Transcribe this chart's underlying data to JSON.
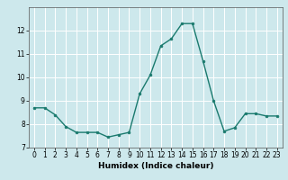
{
  "x": [
    0,
    1,
    2,
    3,
    4,
    5,
    6,
    7,
    8,
    9,
    10,
    11,
    12,
    13,
    14,
    15,
    16,
    17,
    18,
    19,
    20,
    21,
    22,
    23
  ],
  "y": [
    8.7,
    8.7,
    8.4,
    7.9,
    7.65,
    7.65,
    7.65,
    7.45,
    7.55,
    7.65,
    9.3,
    10.1,
    11.35,
    11.65,
    12.3,
    12.3,
    10.7,
    9.0,
    7.7,
    7.85,
    8.45,
    8.45,
    8.35,
    8.35
  ],
  "xlim": [
    -0.5,
    23.5
  ],
  "ylim": [
    7,
    13
  ],
  "yticks": [
    7,
    8,
    9,
    10,
    11,
    12
  ],
  "xticks": [
    0,
    1,
    2,
    3,
    4,
    5,
    6,
    7,
    8,
    9,
    10,
    11,
    12,
    13,
    14,
    15,
    16,
    17,
    18,
    19,
    20,
    21,
    22,
    23
  ],
  "xlabel": "Humidex (Indice chaleur)",
  "line_color": "#1a7a6e",
  "marker": "o",
  "marker_size": 2.0,
  "bg_color": "#cde8ec",
  "grid_color": "#ffffff",
  "line_width": 1.0,
  "tick_fontsize": 5.5,
  "xlabel_fontsize": 6.5
}
